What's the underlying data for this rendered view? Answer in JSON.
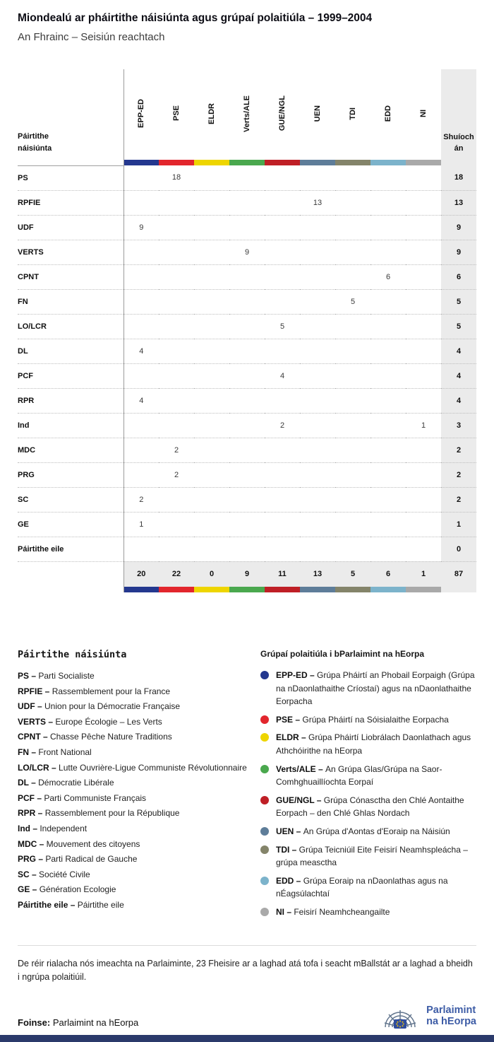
{
  "header": {
    "title": "Miondealú ar pháirtithe náisiúnta agus grúpaí polaitiúla – 1999–2004",
    "subtitle": "An Fhrainc – Seisiún reachtach"
  },
  "chart_data": {
    "type": "table",
    "row_header": "Páirtithe náisiúnta",
    "seats_label": "Shuíochán",
    "columns": [
      "EPP-ED",
      "PSE",
      "ELDR",
      "Verts/ALE",
      "GUE/NGL",
      "UEN",
      "TDI",
      "EDD",
      "NI"
    ],
    "column_colors": [
      "#24388f",
      "#e2262d",
      "#eed500",
      "#4aa84e",
      "#bf1f26",
      "#5e7d99",
      "#84846a",
      "#7cb3cb",
      "#a9a9a9"
    ],
    "rows": [
      {
        "party": "PS",
        "values": [
          null,
          18,
          null,
          null,
          null,
          null,
          null,
          null,
          null
        ],
        "total": 18
      },
      {
        "party": "RPFIE",
        "values": [
          null,
          null,
          null,
          null,
          null,
          13,
          null,
          null,
          null
        ],
        "total": 13
      },
      {
        "party": "UDF",
        "values": [
          9,
          null,
          null,
          null,
          null,
          null,
          null,
          null,
          null
        ],
        "total": 9
      },
      {
        "party": "VERTS",
        "values": [
          null,
          null,
          null,
          9,
          null,
          null,
          null,
          null,
          null
        ],
        "total": 9
      },
      {
        "party": "CPNT",
        "values": [
          null,
          null,
          null,
          null,
          null,
          null,
          null,
          6,
          null
        ],
        "total": 6
      },
      {
        "party": "FN",
        "values": [
          null,
          null,
          null,
          null,
          null,
          null,
          5,
          null,
          null
        ],
        "total": 5
      },
      {
        "party": "LO/LCR",
        "values": [
          null,
          null,
          null,
          null,
          5,
          null,
          null,
          null,
          null
        ],
        "total": 5
      },
      {
        "party": "DL",
        "values": [
          4,
          null,
          null,
          null,
          null,
          null,
          null,
          null,
          null
        ],
        "total": 4
      },
      {
        "party": "PCF",
        "values": [
          null,
          null,
          null,
          null,
          4,
          null,
          null,
          null,
          null
        ],
        "total": 4
      },
      {
        "party": "RPR",
        "values": [
          4,
          null,
          null,
          null,
          null,
          null,
          null,
          null,
          null
        ],
        "total": 4
      },
      {
        "party": "Ind",
        "values": [
          null,
          null,
          null,
          null,
          2,
          null,
          null,
          null,
          1
        ],
        "total": 3
      },
      {
        "party": "MDC",
        "values": [
          null,
          2,
          null,
          null,
          null,
          null,
          null,
          null,
          null
        ],
        "total": 2
      },
      {
        "party": "PRG",
        "values": [
          null,
          2,
          null,
          null,
          null,
          null,
          null,
          null,
          null
        ],
        "total": 2
      },
      {
        "party": "SC",
        "values": [
          2,
          null,
          null,
          null,
          null,
          null,
          null,
          null,
          null
        ],
        "total": 2
      },
      {
        "party": "GE",
        "values": [
          1,
          null,
          null,
          null,
          null,
          null,
          null,
          null,
          null
        ],
        "total": 1
      },
      {
        "party": "Páirtithe eile",
        "values": [
          null,
          null,
          null,
          null,
          null,
          null,
          null,
          null,
          null
        ],
        "total": 0
      }
    ],
    "column_totals": [
      20,
      22,
      0,
      9,
      11,
      13,
      5,
      6,
      1
    ],
    "grand_total": 87
  },
  "legend_parties": {
    "title": "Páirtithe náisiúnta",
    "items": [
      {
        "code": "PS",
        "name": "Parti Socialiste"
      },
      {
        "code": "RPFIE",
        "name": "Rassemblement pour la France"
      },
      {
        "code": "UDF",
        "name": "Union pour la Démocratie Française"
      },
      {
        "code": "VERTS",
        "name": "Europe Écologie – Les Verts"
      },
      {
        "code": "CPNT",
        "name": "Chasse Pêche Nature Traditions"
      },
      {
        "code": "FN",
        "name": "Front National"
      },
      {
        "code": "LO/LCR",
        "name": "Lutte Ouvrière-Ligue Communiste Révolutionnaire"
      },
      {
        "code": "DL",
        "name": "Démocratie Libérale"
      },
      {
        "code": "PCF",
        "name": "Parti Communiste Français"
      },
      {
        "code": "RPR",
        "name": "Rassemblement pour la République"
      },
      {
        "code": "Ind",
        "name": "Independent"
      },
      {
        "code": "MDC",
        "name": "Mouvement des citoyens"
      },
      {
        "code": "PRG",
        "name": "Parti Radical de Gauche"
      },
      {
        "code": "SC",
        "name": "Société Civile"
      },
      {
        "code": "GE",
        "name": "Génération Ecologie"
      },
      {
        "code": "Páirtithe eile",
        "name": "Páirtithe eile"
      }
    ]
  },
  "legend_groups": {
    "title": "Grúpaí polaitiúla i bParlaimint na hEorpa",
    "items": [
      {
        "code": "EPP-ED",
        "color": "#24388f",
        "desc": "Grúpa Pháirtí an Phobail Eorpaigh (Grúpa na nDaonlathaithe Críostaí) agus na nDaonlathaithe Eorpacha"
      },
      {
        "code": "PSE",
        "color": "#e2262d",
        "desc": "Grúpa Pháirtí na Sóisialaithe Eorpacha"
      },
      {
        "code": "ELDR",
        "color": "#eed500",
        "desc": "Grúpa Pháirtí Liobrálach Daonlathach agus Athchóirithe na hEorpa"
      },
      {
        "code": "Verts/ALE",
        "color": "#4aa84e",
        "desc": "An Grúpa Glas/Grúpa na Saor-Comhghuaillíochta Eorpaí"
      },
      {
        "code": "GUE/NGL",
        "color": "#bf1f26",
        "desc": "Grúpa Cónasctha den Chlé Aontaithe Eorpach – den Chlé Ghlas Nordach"
      },
      {
        "code": "UEN",
        "color": "#5e7d99",
        "desc": "An Grúpa d'Aontas d'Eoraip na Náisiún"
      },
      {
        "code": "TDI",
        "color": "#84846a",
        "desc": "Grúpa Teicniúil Eite Feisirí Neamhspleácha – grúpa measctha"
      },
      {
        "code": "EDD",
        "color": "#7cb3cb",
        "desc": "Grúpa Eoraip na nDaonlathas agus na nÉagsúlachtaí"
      },
      {
        "code": "NI",
        "color": "#a9a9a9",
        "desc": "Feisirí Neamhcheangailte"
      }
    ]
  },
  "footer": {
    "note": "De réir rialacha nós imeachta na Parlaiminte, 23 Fheisire ar a laghad atá tofa i seacht mBallstát ar a laghad a bheidh i ngrúpa polaitiúil.",
    "source_label": "Foinse:",
    "source_value": "Parlaimint na hEorpa"
  },
  "logo": {
    "line1": "Parlaimint",
    "line2": "na hEorpa",
    "accent_color": "#3d5ca6",
    "bottom_bar_color": "#2b3a6b"
  }
}
